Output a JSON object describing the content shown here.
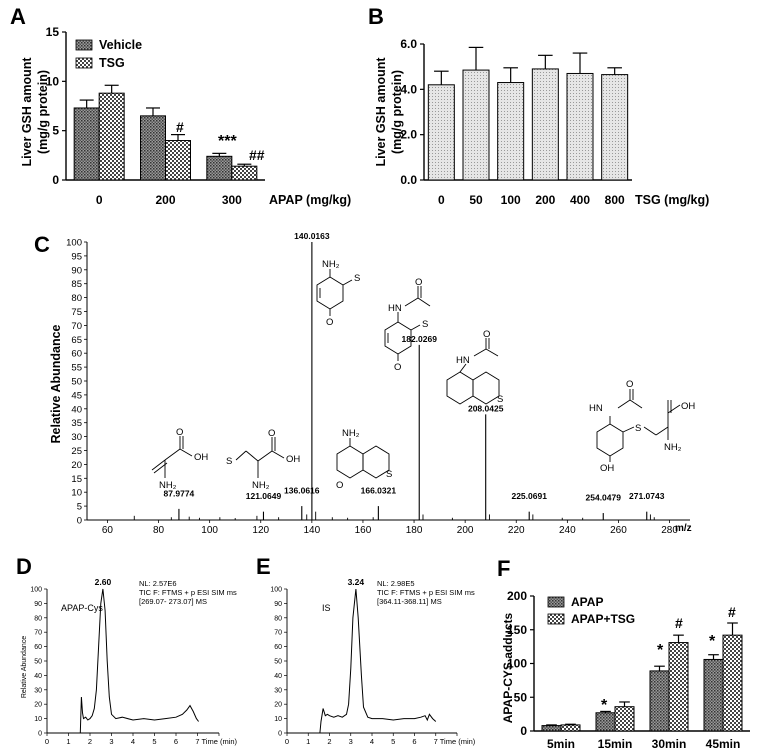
{
  "panels": {
    "A": {
      "letter": "A",
      "ylabel_line1": "Liver GSH amount",
      "ylabel_line2": "(mg/g protein)",
      "xlabel": "APAP (mg/kg)",
      "legend": [
        "Vehicle",
        "TSG"
      ],
      "annotations": [
        "#",
        "***",
        "##"
      ]
    },
    "B": {
      "letter": "B",
      "ylabel_line1": "Liver GSH amount",
      "ylabel_line2": "(mg/g protein)",
      "xlabel": "TSG (mg/kg)"
    },
    "C": {
      "letter": "C",
      "ylabel": "Relative Abundance",
      "xlabel": "m/z",
      "nh2_labels": [
        "NH2",
        "NH2",
        "NH2",
        "NH2"
      ],
      "oh_labels": [
        "OH",
        "OH",
        "OH",
        "OH"
      ],
      "s_labels": [
        "S",
        "S",
        "S",
        "S",
        "S",
        "S"
      ],
      "o_labels": [
        "O",
        "O",
        "O",
        "O",
        "O",
        "O",
        "O",
        "O"
      ],
      "hn_labels": [
        "HN",
        "HN",
        "HN"
      ]
    },
    "D": {
      "letter": "D",
      "ylabel": "Relative Abundance",
      "xlabel": "Time (min)",
      "peak_label": "2.60",
      "compound": "APAP-Cys",
      "info": [
        "NL: 2.57E6",
        "TIC F: FTMS + p ESI SIM ms",
        "[269.07- 273.07] MS"
      ]
    },
    "E": {
      "letter": "E",
      "xlabel": "Time (min)",
      "peak_label": "3.24",
      "compound": "IS",
      "info": [
        "NL: 2.98E5",
        "TIC F: FTMS + p ESI SIM ms",
        "[364.11-368.11] MS"
      ]
    },
    "F": {
      "letter": "F",
      "ylabel": "APAP-CYS adducts",
      "legend": [
        "APAP",
        "APAP+TSG"
      ],
      "annotations": [
        "*",
        "*",
        "*",
        "#",
        "#"
      ]
    }
  },
  "chart_data": [
    {
      "id": "A",
      "type": "bar",
      "categories": [
        "0",
        "200",
        "300"
      ],
      "series": [
        {
          "name": "Vehicle",
          "values": [
            7.3,
            6.5,
            2.4
          ],
          "errors": [
            0.8,
            0.8,
            0.3
          ]
        },
        {
          "name": "TSG",
          "values": [
            8.8,
            4.0,
            1.4
          ],
          "errors": [
            0.8,
            0.6,
            0.2
          ]
        }
      ],
      "ylim": [
        0,
        15
      ],
      "yticks": [
        "0",
        "5",
        "10",
        "15"
      ],
      "legend": "top-left"
    },
    {
      "id": "B",
      "type": "bar",
      "categories": [
        "0",
        "50",
        "100",
        "200",
        "400",
        "800"
      ],
      "values": [
        4.2,
        4.85,
        4.3,
        4.9,
        4.7,
        4.65
      ],
      "errors": [
        0.6,
        1.0,
        0.65,
        0.6,
        0.9,
        0.3
      ],
      "ylim": [
        0,
        6
      ],
      "yticks": [
        "0.0",
        "2.0",
        "4.0",
        "6.0"
      ]
    },
    {
      "id": "C",
      "type": "bar",
      "xlim": [
        52,
        288
      ],
      "ylim": [
        0,
        100
      ],
      "xticks": [
        "60",
        "80",
        "100",
        "120",
        "140",
        "160",
        "180",
        "200",
        "220",
        "240",
        "260",
        "280"
      ],
      "yticks": [
        "0",
        "5",
        "10",
        "15",
        "20",
        "25",
        "30",
        "35",
        "40",
        "45",
        "50",
        "55",
        "60",
        "65",
        "70",
        "75",
        "80",
        "85",
        "90",
        "95",
        "100"
      ],
      "labeled_peaks": [
        {
          "mz": 87.9774,
          "label": "87.9774",
          "y": 4
        },
        {
          "mz": 121.0649,
          "label": "121.0649",
          "y": 3
        },
        {
          "mz": 136.0616,
          "label": "136.0616",
          "y": 5
        },
        {
          "mz": 140.0163,
          "label": "140.0163",
          "y": 100
        },
        {
          "mz": 166.0321,
          "label": "166.0321",
          "y": 5
        },
        {
          "mz": 182.0269,
          "label": "182.0269",
          "y": 63
        },
        {
          "mz": 208.0425,
          "label": "208.0425",
          "y": 38
        },
        {
          "mz": 225.0691,
          "label": "225.0691",
          "y": 3
        },
        {
          "mz": 254.0479,
          "label": "254.0479",
          "y": 2.5
        },
        {
          "mz": 271.0743,
          "label": "271.0743",
          "y": 3
        }
      ],
      "minor_peaks": [
        {
          "mz": 70.5,
          "y": 1.5
        },
        {
          "mz": 85.0,
          "y": 1.0
        },
        {
          "mz": 92.0,
          "y": 1.2
        },
        {
          "mz": 96.0,
          "y": 0.8
        },
        {
          "mz": 104.0,
          "y": 1.0
        },
        {
          "mz": 110.0,
          "y": 0.7
        },
        {
          "mz": 118.5,
          "y": 1.5
        },
        {
          "mz": 127.0,
          "y": 1.0
        },
        {
          "mz": 138.0,
          "y": 2.0
        },
        {
          "mz": 141.5,
          "y": 3.0
        },
        {
          "mz": 148.0,
          "y": 1.0
        },
        {
          "mz": 154.0,
          "y": 0.8
        },
        {
          "mz": 164.0,
          "y": 1.0
        },
        {
          "mz": 183.5,
          "y": 2.0
        },
        {
          "mz": 195.0,
          "y": 0.8
        },
        {
          "mz": 209.5,
          "y": 2.0
        },
        {
          "mz": 226.5,
          "y": 2.0
        },
        {
          "mz": 238.0,
          "y": 0.8
        },
        {
          "mz": 246.0,
          "y": 0.8
        },
        {
          "mz": 272.5,
          "y": 2.0
        },
        {
          "mz": 274.0,
          "y": 1.0
        }
      ]
    },
    {
      "id": "D",
      "type": "line",
      "xlim": [
        0,
        8
      ],
      "ylim": [
        0,
        100
      ],
      "xticks": [
        "0",
        "1",
        "2",
        "3",
        "4",
        "5",
        "6",
        "7",
        "8"
      ],
      "yticks": [
        "0",
        "10",
        "20",
        "30",
        "40",
        "50",
        "60",
        "70",
        "80",
        "90",
        "100"
      ],
      "x": [
        1.55,
        1.6,
        1.65,
        1.7,
        1.8,
        1.9,
        2.0,
        2.1,
        2.2,
        2.3,
        2.4,
        2.5,
        2.6,
        2.7,
        2.8,
        2.9,
        3.0,
        3.2,
        3.5,
        4.0,
        4.5,
        5.0,
        5.5,
        6.0,
        6.3,
        6.5,
        6.65,
        6.8,
        6.95,
        7.05
      ],
      "y": [
        0,
        25,
        14,
        10,
        11,
        9,
        10,
        12,
        17,
        30,
        60,
        90,
        100,
        85,
        50,
        25,
        13,
        10,
        11,
        9,
        10,
        9,
        10,
        11,
        13,
        16,
        19,
        15,
        10,
        8
      ]
    },
    {
      "id": "E",
      "type": "line",
      "xlim": [
        0,
        8
      ],
      "ylim": [
        0,
        100
      ],
      "xticks": [
        "0",
        "1",
        "2",
        "3",
        "4",
        "5",
        "6",
        "7",
        "8"
      ],
      "yticks": [
        "0",
        "10",
        "20",
        "30",
        "40",
        "50",
        "60",
        "70",
        "80",
        "90",
        "100"
      ],
      "x": [
        1.55,
        1.6,
        1.7,
        1.8,
        1.9,
        2.0,
        2.2,
        2.4,
        2.6,
        2.8,
        2.9,
        3.0,
        3.1,
        3.24,
        3.35,
        3.5,
        3.6,
        3.8,
        4.0,
        4.5,
        5.0,
        5.5,
        6.0,
        6.3,
        6.5,
        6.6,
        6.7,
        6.85,
        7.0
      ],
      "y": [
        0,
        8,
        17,
        12,
        13,
        12,
        11,
        12,
        11,
        13,
        20,
        45,
        80,
        100,
        80,
        40,
        18,
        11,
        10,
        10,
        9,
        10,
        10,
        11,
        12,
        9,
        13,
        10,
        8
      ]
    },
    {
      "id": "F",
      "type": "bar",
      "categories": [
        "5min",
        "15min",
        "30min",
        "45min"
      ],
      "series": [
        {
          "name": "APAP",
          "values": [
            8,
            27,
            89,
            106
          ],
          "errors": [
            1,
            2,
            7,
            7
          ]
        },
        {
          "name": "APAP+TSG",
          "values": [
            9,
            36,
            131,
            142
          ],
          "errors": [
            1,
            7,
            11,
            18
          ]
        }
      ],
      "ylim": [
        0,
        200
      ],
      "yticks": [
        "0",
        "50",
        "100",
        "150",
        "200"
      ],
      "legend": "top-left"
    }
  ]
}
